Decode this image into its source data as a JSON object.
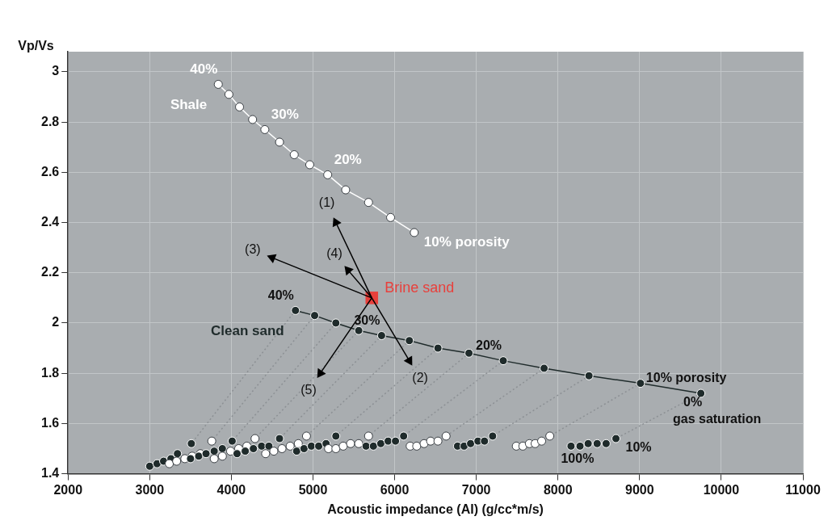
{
  "chart_data": {
    "type": "line",
    "xlabel": "Acoustic impedance (AI) (g/cc*m/s)",
    "ylabel": "Vp/Vs",
    "xlim": [
      2000,
      11000
    ],
    "xticks": [
      2000,
      3000,
      4000,
      5000,
      6000,
      7000,
      8000,
      9000,
      10000,
      11000
    ],
    "ylim": [
      1.4,
      3.08
    ],
    "yticks": [
      1.4,
      1.6,
      1.8,
      2,
      2.2,
      2.4,
      2.6,
      2.8,
      3
    ],
    "grid": true,
    "legend": false,
    "series": [
      {
        "color": "#8c9094",
        "line_style": "dotted",
        "marker": "none",
        "x": [
          4785,
          3510
        ],
        "values": [
          2.05,
          1.52
        ]
      },
      {
        "color": "#8c9094",
        "line_style": "dotted",
        "marker": "none",
        "x": [
          5020,
          3760
        ],
        "values": [
          2.03,
          1.53
        ]
      },
      {
        "color": "#8c9094",
        "line_style": "dotted",
        "marker": "none",
        "x": [
          5280,
          4010
        ],
        "values": [
          2.0,
          1.53
        ]
      },
      {
        "color": "#8c9094",
        "line_style": "dotted",
        "marker": "none",
        "x": [
          5560,
          4290
        ],
        "values": [
          1.97,
          1.54
        ]
      },
      {
        "color": "#8c9094",
        "line_style": "dotted",
        "marker": "none",
        "x": [
          5840,
          4590
        ],
        "values": [
          1.95,
          1.54
        ]
      },
      {
        "color": "#8c9094",
        "line_style": "dotted",
        "marker": "none",
        "x": [
          6180,
          4920
        ],
        "values": [
          1.93,
          1.55
        ]
      },
      {
        "color": "#8c9094",
        "line_style": "dotted",
        "marker": "none",
        "x": [
          6530,
          5280
        ],
        "values": [
          1.9,
          1.55
        ]
      },
      {
        "color": "#8c9094",
        "line_style": "dotted",
        "marker": "none",
        "x": [
          6910,
          5680
        ],
        "values": [
          1.88,
          1.55
        ]
      },
      {
        "color": "#8c9094",
        "line_style": "dotted",
        "marker": "none",
        "x": [
          7330,
          6110
        ],
        "values": [
          1.85,
          1.55
        ]
      },
      {
        "color": "#8c9094",
        "line_style": "dotted",
        "marker": "none",
        "x": [
          7830,
          6630
        ],
        "values": [
          1.82,
          1.55
        ]
      },
      {
        "color": "#8c9094",
        "line_style": "dotted",
        "marker": "none",
        "x": [
          8380,
          7200
        ],
        "values": [
          1.79,
          1.55
        ]
      },
      {
        "color": "#8c9094",
        "line_style": "dotted",
        "marker": "none",
        "x": [
          9010,
          7900
        ],
        "values": [
          1.76,
          1.55
        ]
      },
      {
        "color": "#8c9094",
        "line_style": "dotted",
        "marker": "none",
        "x": [
          9750,
          8710
        ],
        "values": [
          1.72,
          1.54
        ]
      },
      {
        "type": "scatter",
        "color": "#1f2b2b",
        "marker": "circle",
        "x": [
          3000,
          3090,
          3170,
          3260,
          3340,
          3510
        ],
        "values": [
          1.43,
          1.44,
          1.45,
          1.46,
          1.48,
          1.52
        ]
      },
      {
        "type": "scatter",
        "color": "#ffffff",
        "marker": "circle",
        "x": [
          3240,
          3330,
          3430,
          3520,
          3620,
          3760
        ],
        "values": [
          1.44,
          1.45,
          1.46,
          1.47,
          1.48,
          1.53
        ]
      },
      {
        "type": "scatter",
        "color": "#1f2b2b",
        "marker": "circle",
        "x": [
          3500,
          3600,
          3690,
          3790,
          3890,
          4010
        ],
        "values": [
          1.46,
          1.47,
          1.48,
          1.49,
          1.5,
          1.53
        ]
      },
      {
        "type": "scatter",
        "color": "#ffffff",
        "marker": "circle",
        "x": [
          3790,
          3890,
          3990,
          4090,
          4190,
          4290
        ],
        "values": [
          1.46,
          1.47,
          1.49,
          1.5,
          1.51,
          1.54
        ]
      },
      {
        "type": "scatter",
        "color": "#1f2b2b",
        "marker": "circle",
        "x": [
          4070,
          4170,
          4270,
          4370,
          4460,
          4590
        ],
        "values": [
          1.48,
          1.49,
          1.5,
          1.51,
          1.51,
          1.54
        ]
      },
      {
        "type": "scatter",
        "color": "#ffffff",
        "marker": "circle",
        "x": [
          4420,
          4520,
          4620,
          4720,
          4820,
          4920
        ],
        "values": [
          1.48,
          1.49,
          1.5,
          1.51,
          1.52,
          1.55
        ]
      },
      {
        "type": "scatter",
        "color": "#1f2b2b",
        "marker": "circle",
        "x": [
          4800,
          4890,
          4980,
          5070,
          5160,
          5280
        ],
        "values": [
          1.49,
          1.5,
          1.51,
          1.51,
          1.52,
          1.55
        ]
      },
      {
        "type": "scatter",
        "color": "#ffffff",
        "marker": "circle",
        "x": [
          5190,
          5280,
          5370,
          5460,
          5560,
          5680
        ],
        "values": [
          1.5,
          1.5,
          1.51,
          1.52,
          1.52,
          1.55
        ]
      },
      {
        "type": "scatter",
        "color": "#1f2b2b",
        "marker": "circle",
        "x": [
          5650,
          5740,
          5830,
          5920,
          6010,
          6110
        ],
        "values": [
          1.51,
          1.51,
          1.52,
          1.53,
          1.53,
          1.55
        ]
      },
      {
        "type": "scatter",
        "color": "#ffffff",
        "marker": "circle",
        "x": [
          6190,
          6270,
          6360,
          6440,
          6530,
          6630
        ],
        "values": [
          1.51,
          1.51,
          1.52,
          1.53,
          1.53,
          1.55
        ]
      },
      {
        "type": "scatter",
        "color": "#1f2b2b",
        "marker": "circle",
        "x": [
          6770,
          6850,
          6930,
          7020,
          7100,
          7200
        ],
        "values": [
          1.51,
          1.51,
          1.52,
          1.53,
          1.53,
          1.55
        ]
      },
      {
        "type": "scatter",
        "color": "#ffffff",
        "marker": "circle",
        "x": [
          7490,
          7570,
          7650,
          7720,
          7800,
          7900
        ],
        "values": [
          1.51,
          1.51,
          1.52,
          1.52,
          1.53,
          1.55
        ]
      },
      {
        "type": "scatter",
        "color": "#1f2b2b",
        "marker": "circle",
        "x": [
          8160,
          8270,
          8370,
          8480,
          8590,
          8710
        ],
        "values": [
          1.51,
          1.51,
          1.52,
          1.52,
          1.52,
          1.54
        ]
      },
      {
        "name": "Clean sand",
        "color": "#1f2b2b",
        "marker": "circle",
        "x": [
          4785,
          5020,
          5280,
          5560,
          5840,
          6180,
          6530,
          6910,
          7330,
          7830,
          8380,
          9010,
          9750
        ],
        "values": [
          2.05,
          2.03,
          2.0,
          1.97,
          1.95,
          1.93,
          1.9,
          1.88,
          1.85,
          1.82,
          1.79,
          1.76,
          1.72
        ]
      },
      {
        "name": "Shale",
        "color": "#ffffff",
        "marker": "circle",
        "x": [
          3840,
          3970,
          4100,
          4260,
          4410,
          4590,
          4770,
          4960,
          5180,
          5400,
          5680,
          5950,
          6240
        ],
        "values": [
          2.95,
          2.91,
          2.86,
          2.81,
          2.77,
          2.72,
          2.67,
          2.63,
          2.59,
          2.53,
          2.48,
          2.42,
          2.36
        ]
      },
      {
        "name": "Brine sand",
        "type": "scatter",
        "color": "#e8403c",
        "marker": "square",
        "x": [
          5720
        ],
        "values": [
          2.1
        ]
      },
      {
        "color": "#000000",
        "marker": "triangle",
        "x": [
          5720,
          5280
        ],
        "values": [
          2.1,
          2.4
        ]
      },
      {
        "color": "#000000",
        "marker": "triangle",
        "x": [
          5720,
          6180
        ],
        "values": [
          2.1,
          1.85
        ]
      },
      {
        "color": "#000000",
        "marker": "triangle",
        "x": [
          5720,
          4500
        ],
        "values": [
          2.1,
          2.26
        ]
      },
      {
        "color": "#000000",
        "marker": "triangle",
        "x": [
          5720,
          5430
        ],
        "values": [
          2.1,
          2.21
        ]
      },
      {
        "color": "#000000",
        "marker": "triangle",
        "x": [
          5720,
          5090
        ],
        "values": [
          2.1,
          1.8
        ]
      }
    ],
    "annotations": [
      {
        "text": "40%",
        "x": 3840,
        "y": 2.95
      },
      {
        "text": "30%",
        "x": 4410,
        "y": 2.77
      },
      {
        "text": "20%",
        "x": 5180,
        "y": 2.59
      },
      {
        "text": "10% porosity",
        "x": 6240,
        "y": 2.36
      },
      {
        "text": "40%",
        "x": 4785,
        "y": 2.05
      },
      {
        "text": "30%",
        "x": 5840,
        "y": 1.95
      },
      {
        "text": "20%",
        "x": 7330,
        "y": 1.85
      },
      {
        "text": "10% porosity",
        "x": 9750,
        "y": 1.72
      },
      {
        "text": "0%",
        "x": 9750,
        "y": 1.72
      },
      {
        "text": "gas saturation",
        "x": 9750,
        "y": 1.72
      },
      {
        "text": "100%",
        "x": 8160,
        "y": 1.51
      },
      {
        "text": "10%",
        "x": 8710,
        "y": 1.54
      },
      {
        "text": "(1)",
        "x": 5280,
        "y": 2.4
      },
      {
        "text": "(2)",
        "x": 6180,
        "y": 1.85
      },
      {
        "text": "(3)",
        "x": 4500,
        "y": 2.26
      },
      {
        "text": "(4)",
        "x": 5430,
        "y": 2.21
      },
      {
        "text": "(5)",
        "x": 5090,
        "y": 1.8
      }
    ]
  }
}
